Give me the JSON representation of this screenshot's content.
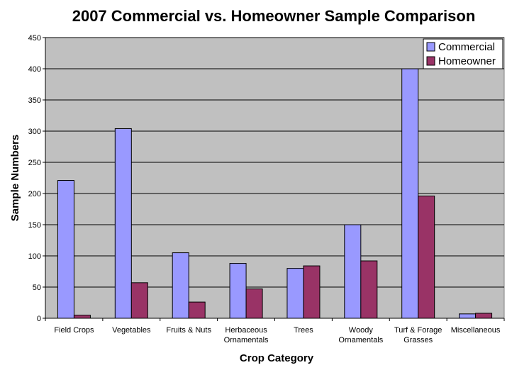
{
  "chart_data": {
    "type": "bar",
    "title": "2007 Commercial vs. Homeowner Sample Comparison",
    "xlabel": "Crop Category",
    "ylabel": "Sample Numbers",
    "ylim": [
      0,
      450
    ],
    "yticks": [
      0,
      50,
      100,
      150,
      200,
      250,
      300,
      350,
      400,
      450
    ],
    "categories": [
      [
        "Field Crops"
      ],
      [
        "Vegetables"
      ],
      [
        "Fruits & Nuts"
      ],
      [
        "Herbaceous",
        "Ornamentals"
      ],
      [
        "Trees"
      ],
      [
        "Woody",
        "Ornamentals"
      ],
      [
        "Turf & Forage",
        "Grasses"
      ],
      [
        "Miscellaneous"
      ]
    ],
    "series": [
      {
        "name": "Commercial",
        "color": "#9999ff",
        "values": [
          221,
          304,
          105,
          88,
          80,
          150,
          400,
          7
        ]
      },
      {
        "name": "Homeowner",
        "color": "#993366",
        "values": [
          5,
          57,
          26,
          47,
          84,
          92,
          196,
          8
        ]
      }
    ],
    "grid": true,
    "plot_background": "#c0c0c0",
    "legend": "top-right"
  }
}
